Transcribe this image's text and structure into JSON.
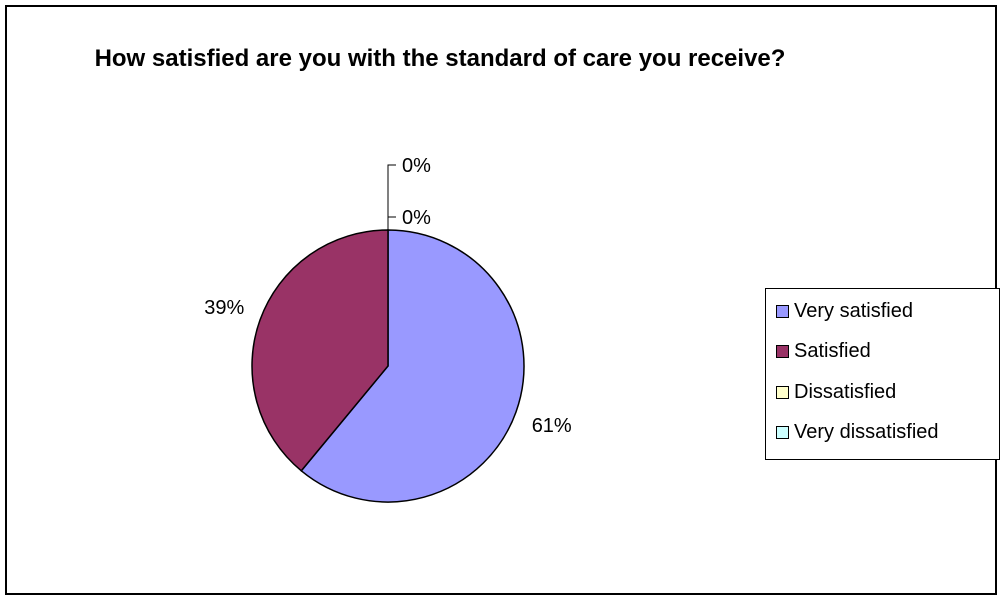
{
  "chart_data": {
    "type": "pie",
    "title": "How satisfied are you with the standard of care you receive?",
    "categories": [
      "Very satisfied",
      "Satisfied",
      "Dissatisfied",
      "Very dissatisfied"
    ],
    "values": [
      61,
      39,
      0,
      0
    ],
    "labels": [
      "61%",
      "39%",
      "0%",
      "0%"
    ],
    "colors": [
      "#9999ff",
      "#993366",
      "#ffffcc",
      "#ccffff"
    ],
    "legend_position": "right"
  }
}
